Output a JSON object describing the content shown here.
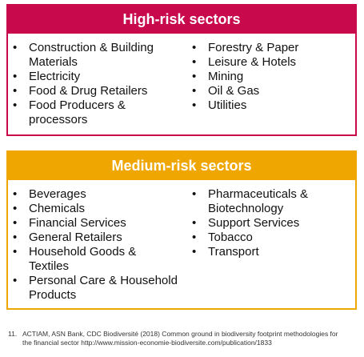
{
  "boxes": [
    {
      "title": "High-risk sectors",
      "color": "#c8094b",
      "columns": [
        [
          [
            "Construction & Building",
            "Materials"
          ],
          [
            "Electricity"
          ],
          [
            "Food & Drug Retailers"
          ],
          [
            "Food Producers &",
            "processors"
          ]
        ],
        [
          [
            "Forestry & Paper"
          ],
          [
            "Leisure & Hotels"
          ],
          [
            "Mining"
          ],
          [
            "Oil & Gas"
          ],
          [
            "Utilities"
          ]
        ]
      ]
    },
    {
      "title": "Medium-risk sectors",
      "color": "#f0a600",
      "columns": [
        [
          [
            "Beverages"
          ],
          [
            "Chemicals"
          ],
          [
            "Financial Services"
          ],
          [
            "General Retailers"
          ],
          [
            "Household Goods &",
            "Textiles"
          ],
          [
            "Personal Care & Household",
            "Products"
          ]
        ],
        [
          [
            "Pharmaceuticals &",
            "Biotechnology"
          ],
          [
            "Support Services"
          ],
          [
            "Tobacco"
          ],
          [
            "Transport"
          ]
        ]
      ]
    }
  ],
  "footnote": {
    "number": "11.",
    "lines": [
      "ACTIAM, ASN Bank, CDC Biodiversité (2018) Common ground in biodiversity footprint methodologies for",
      "the financial sector http://www.mission-economie-biodiversite.com/publication/1833"
    ]
  }
}
